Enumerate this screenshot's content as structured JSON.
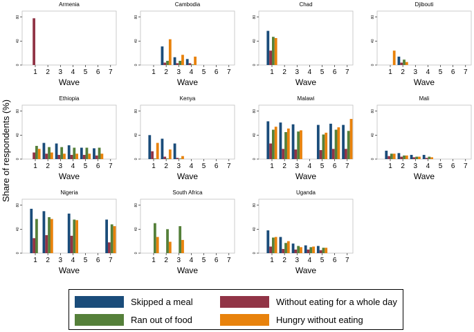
{
  "chart_data": {
    "type": "bar",
    "y_axis_title": "Share of respondents (%)",
    "x_axis_title": "Wave",
    "categories": [
      "1",
      "2",
      "3",
      "4",
      "5",
      "6",
      "7"
    ],
    "yticks": [
      0,
      40,
      80
    ],
    "ylim": [
      0,
      90
    ],
    "series_names": [
      "Skipped a meal",
      "Without eating for a whole day",
      "Ran out of food",
      "Hungry without eating"
    ],
    "series_order": [
      "skipped",
      "whole_day",
      "ran_out",
      "hungry"
    ],
    "colors": {
      "skipped": "#1a4c7a",
      "whole_day": "#913446",
      "ran_out": "#55803a",
      "hungry": "#e8820c"
    },
    "legend": [
      {
        "key": "skipped",
        "label": "Skipped a meal"
      },
      {
        "key": "whole_day",
        "label": "Without eating for a whole day"
      },
      {
        "key": "ran_out",
        "label": "Ran out of food"
      },
      {
        "key": "hungry",
        "label": "Hungry without eating"
      }
    ],
    "panels": [
      {
        "country": "Armenia",
        "data": {
          "skipped": [
            0,
            null,
            null,
            null,
            null,
            null,
            null
          ],
          "whole_day": [
            78,
            null,
            null,
            null,
            null,
            null,
            null
          ],
          "ran_out": [
            0,
            null,
            null,
            null,
            null,
            null,
            null
          ],
          "hungry": [
            0,
            null,
            null,
            null,
            null,
            null,
            null
          ]
        }
      },
      {
        "country": "Cambodia",
        "data": {
          "skipped": [
            null,
            31,
            13,
            10,
            null,
            null,
            null
          ],
          "whole_day": [
            null,
            4,
            3,
            3,
            null,
            null,
            null
          ],
          "ran_out": [
            null,
            7,
            7,
            1,
            null,
            null,
            null
          ],
          "hungry": [
            null,
            43,
            17,
            14,
            null,
            null,
            null
          ]
        }
      },
      {
        "country": "Chad",
        "data": {
          "skipped": [
            57,
            null,
            null,
            null,
            null,
            null,
            null
          ],
          "whole_day": [
            24,
            null,
            null,
            null,
            null,
            null,
            null
          ],
          "ran_out": [
            47,
            null,
            null,
            null,
            null,
            null,
            null
          ],
          "hungry": [
            45,
            null,
            null,
            null,
            null,
            null,
            null
          ]
        }
      },
      {
        "country": "Djibouti",
        "data": {
          "skipped": [
            0,
            14,
            null,
            null,
            null,
            null,
            null
          ],
          "whole_day": [
            0,
            4,
            null,
            null,
            null,
            null,
            null
          ],
          "ran_out": [
            0,
            9,
            null,
            null,
            null,
            null,
            null
          ],
          "hungry": [
            24,
            5,
            null,
            null,
            null,
            null,
            null
          ]
        }
      },
      {
        "country": "Ethiopia",
        "data": {
          "skipped": [
            0,
            27,
            26,
            23,
            19,
            18,
            null
          ],
          "whole_day": [
            11,
            9,
            7,
            7,
            7,
            6,
            null
          ],
          "ran_out": [
            22,
            20,
            20,
            19,
            19,
            19,
            null
          ],
          "hungry": [
            17,
            11,
            9,
            9,
            9,
            9,
            null
          ]
        }
      },
      {
        "country": "Kenya",
        "data": {
          "skipped": [
            40,
            34,
            26,
            null,
            null,
            null,
            null
          ],
          "whole_day": [
            13,
            4,
            2,
            null,
            null,
            null,
            null
          ],
          "ran_out": [
            1,
            1,
            1,
            null,
            null,
            null,
            null
          ],
          "hungry": [
            27,
            16,
            5,
            null,
            null,
            null,
            null
          ]
        }
      },
      {
        "country": "Malawi",
        "data": {
          "skipped": [
            63,
            61,
            58,
            null,
            57,
            59,
            57
          ],
          "whole_day": [
            26,
            17,
            16,
            null,
            15,
            17,
            17
          ],
          "ran_out": [
            49,
            45,
            46,
            null,
            41,
            49,
            47
          ],
          "hungry": [
            54,
            51,
            48,
            null,
            44,
            53,
            67
          ]
        }
      },
      {
        "country": "Mali",
        "data": {
          "skipped": [
            14,
            10,
            7,
            7,
            null,
            null,
            null
          ],
          "whole_day": [
            5,
            4,
            3,
            2,
            null,
            null,
            null
          ],
          "ran_out": [
            9,
            6,
            4,
            4,
            null,
            null,
            null
          ],
          "hungry": [
            9,
            6,
            4,
            3,
            null,
            null,
            null
          ]
        }
      },
      {
        "country": "Nigeria",
        "data": {
          "skipped": [
            74,
            70,
            null,
            66,
            null,
            null,
            56
          ],
          "whole_day": [
            25,
            30,
            null,
            29,
            null,
            null,
            18
          ],
          "ran_out": [
            57,
            60,
            null,
            56,
            null,
            null,
            48
          ],
          "hungry": [
            0,
            57,
            null,
            55,
            null,
            null,
            45
          ]
        }
      },
      {
        "country": "South Africa",
        "data": {
          "skipped": [
            null,
            null,
            null,
            null,
            null,
            null,
            null
          ],
          "whole_day": [
            null,
            null,
            null,
            null,
            null,
            null,
            null
          ],
          "ran_out": [
            50,
            40,
            45,
            null,
            null,
            null,
            null
          ],
          "hungry": [
            27,
            19,
            22,
            null,
            null,
            null,
            null
          ]
        }
      },
      {
        "country": "Uganda",
        "data": {
          "skipped": [
            38,
            27,
            16,
            13,
            12,
            null,
            null
          ],
          "whole_day": [
            11,
            7,
            6,
            6,
            5,
            null,
            null
          ],
          "ran_out": [
            26,
            17,
            12,
            10,
            9,
            null,
            null
          ],
          "hungry": [
            27,
            20,
            10,
            11,
            9,
            null,
            null
          ]
        }
      }
    ]
  }
}
